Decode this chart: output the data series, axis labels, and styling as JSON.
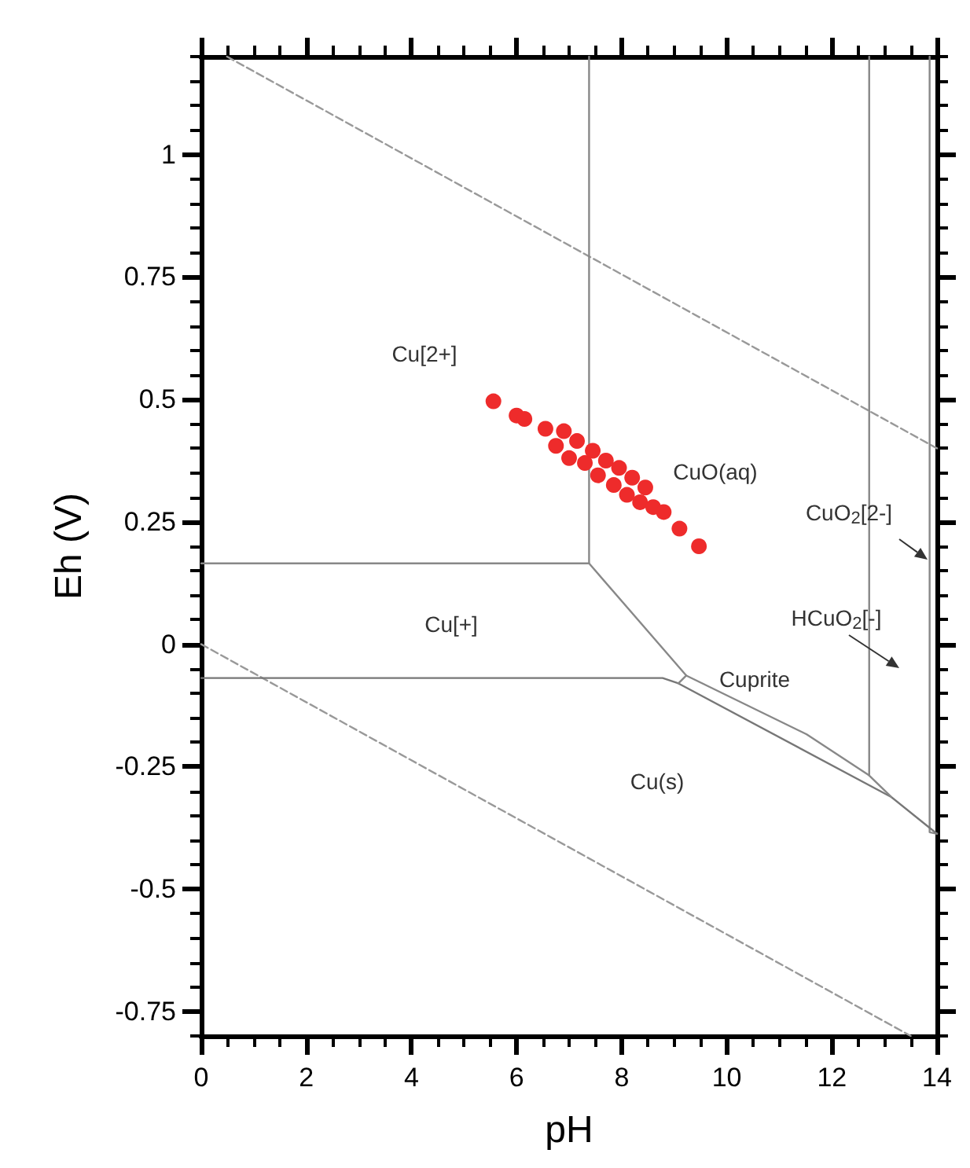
{
  "chart_data": {
    "type": "scatter",
    "xlabel": "pH",
    "ylabel": "Eh (V)",
    "xlim": [
      0,
      14
    ],
    "ylim": [
      -0.8,
      1.2
    ],
    "xticks": [
      0,
      2,
      4,
      6,
      8,
      10,
      12,
      14
    ],
    "yticks": [
      -0.75,
      -0.5,
      -0.25,
      0,
      0.25,
      0.5,
      0.75,
      1
    ],
    "grid": false,
    "series": [
      {
        "type": "line",
        "color": "#999999",
        "line_style": "dashed",
        "marker": "none",
        "x": [
          0.49,
          14
        ],
        "values": [
          1.2,
          0.4
        ]
      },
      {
        "type": "line",
        "color": "#999999",
        "line_style": "dashed",
        "marker": "none",
        "x": [
          0,
          13.5
        ],
        "values": [
          0,
          -0.8
        ]
      },
      {
        "type": "line",
        "color": "#888888",
        "line_style": "solid",
        "marker": "none",
        "x": [
          7.38,
          7.38
        ],
        "values": [
          1.2,
          0.165
        ]
      },
      {
        "type": "line",
        "color": "#888888",
        "line_style": "solid",
        "marker": "none",
        "x": [
          0,
          7.38,
          9.23
        ],
        "values": [
          0.165,
          0.165,
          -0.064
        ]
      },
      {
        "type": "line",
        "color": "#888888",
        "line_style": "solid",
        "marker": "none",
        "x": [
          12.71,
          12.71
        ],
        "values": [
          1.2,
          -0.268
        ]
      },
      {
        "type": "line",
        "color": "#888888",
        "line_style": "solid",
        "marker": "none",
        "x": [
          13.86,
          13.86,
          14
        ],
        "values": [
          1.2,
          -0.384,
          -0.387
        ]
      },
      {
        "type": "line",
        "color": "#777777",
        "line_style": "solid",
        "marker": "none",
        "x": [
          0,
          8.78,
          9.08,
          13.13,
          14
        ],
        "values": [
          -0.069,
          -0.069,
          -0.08,
          -0.312,
          -0.387
        ]
      },
      {
        "type": "line",
        "color": "#888888",
        "line_style": "solid",
        "marker": "none",
        "x": [
          9.08,
          9.23,
          11.52,
          12.71,
          13.13
        ],
        "values": [
          -0.08,
          -0.064,
          -0.184,
          -0.268,
          -0.312
        ]
      },
      {
        "color": "#ee2b2b",
        "marker": "circle",
        "x": [
          5.56,
          6.0,
          6.15,
          6.55,
          6.75,
          6.9,
          7.0,
          7.15,
          7.3,
          7.45,
          7.55,
          7.7,
          7.85,
          7.95,
          8.1,
          8.2,
          8.35,
          8.45,
          8.6,
          8.8,
          9.1,
          9.47
        ],
        "values": [
          0.496,
          0.467,
          0.46,
          0.44,
          0.405,
          0.435,
          0.38,
          0.415,
          0.37,
          0.395,
          0.345,
          0.375,
          0.325,
          0.36,
          0.305,
          0.34,
          0.29,
          0.32,
          0.28,
          0.27,
          0.236,
          0.2
        ]
      }
    ],
    "annotations": [
      "Cu[2+]",
      "CuO(aq)",
      "CuO$_{2}$[2-]",
      "HCuO$_{2}$[-]",
      "Cu[+]",
      "Cuprite",
      "Cu(s)"
    ]
  }
}
